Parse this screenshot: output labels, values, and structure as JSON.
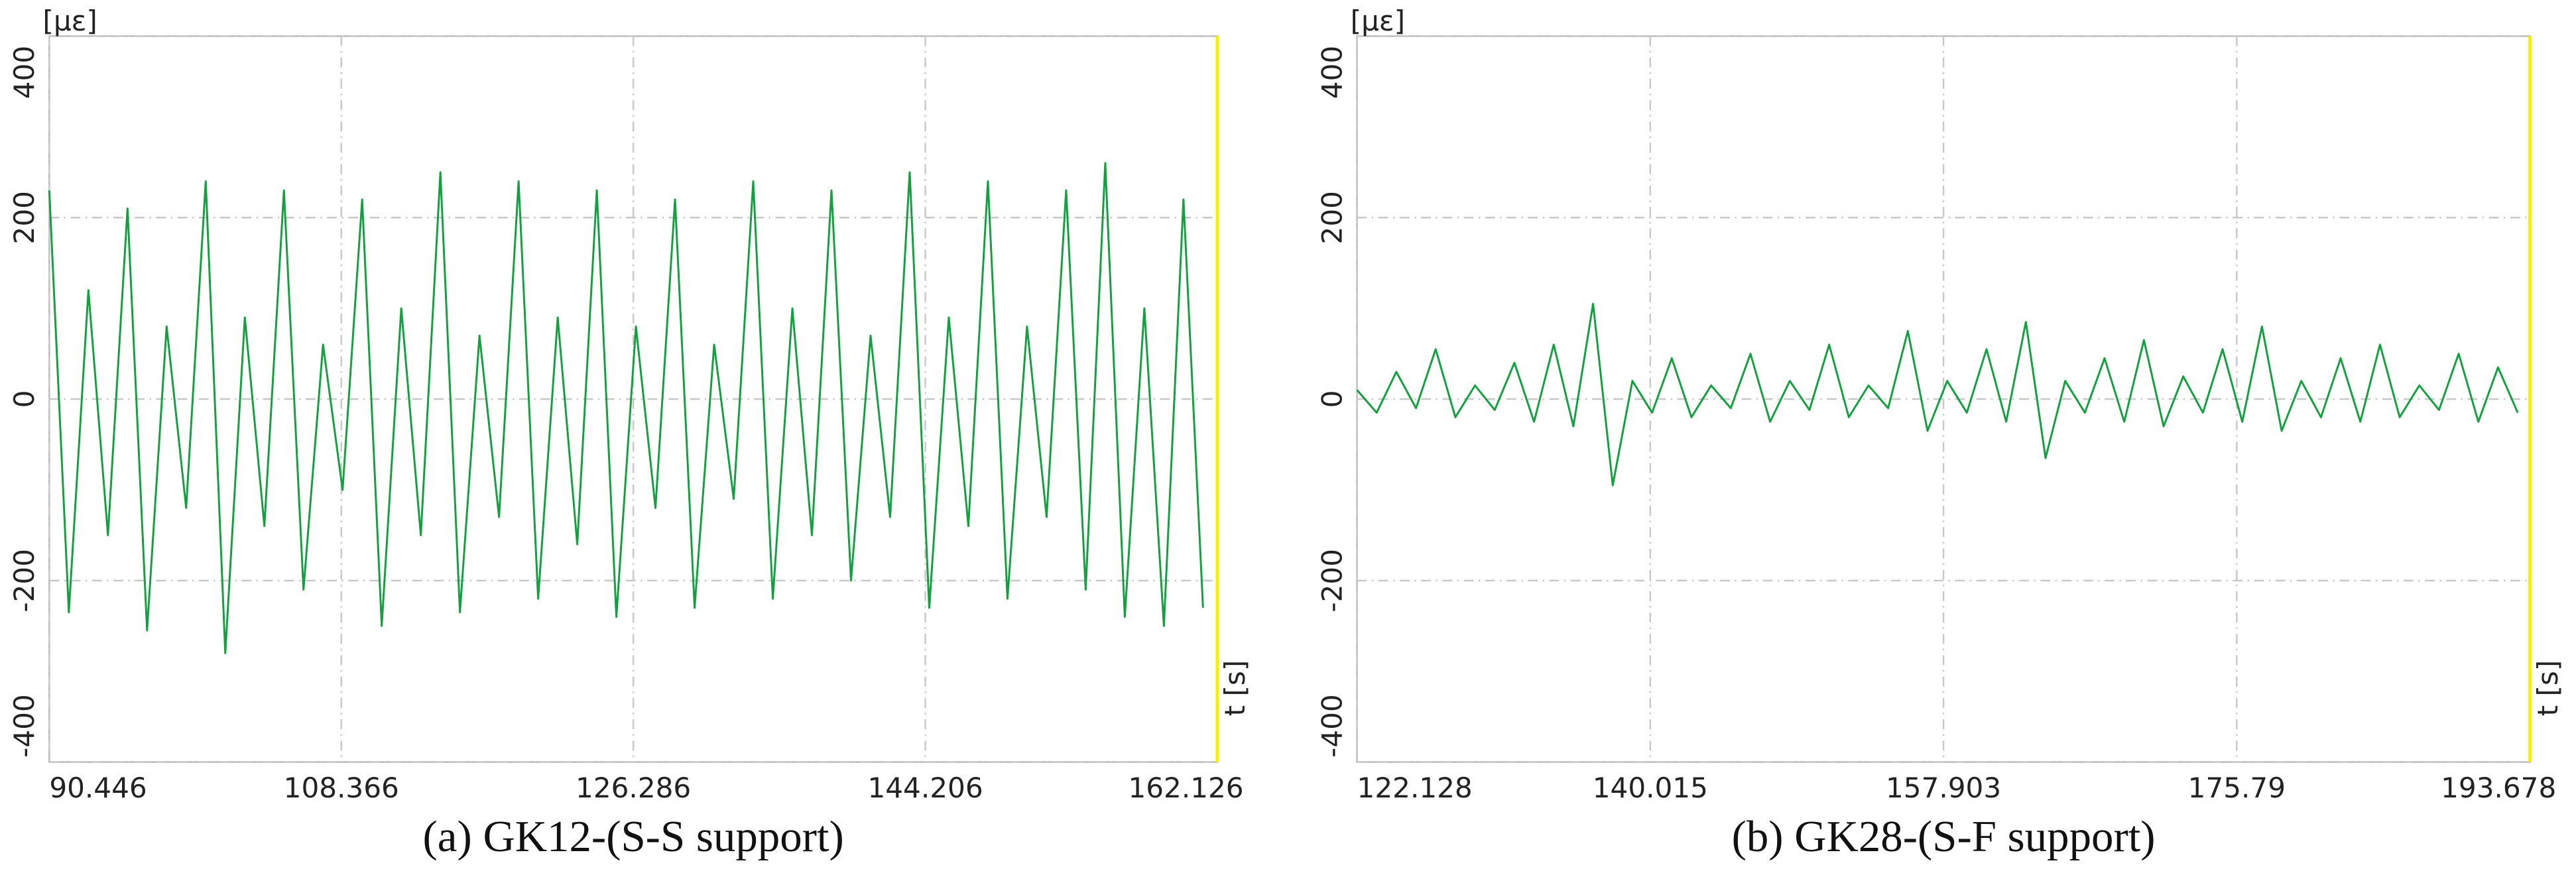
{
  "chart_data": [
    {
      "type": "line",
      "y_unit_label": "[με]",
      "x_unit_label": "t [s]",
      "caption": "(a) GK12-(S-S support)",
      "color": "#14a040",
      "grid": true,
      "xlim": [
        90.446,
        162.126
      ],
      "ylim": [
        -400,
        400
      ],
      "xticks": [
        90.446,
        108.366,
        126.286,
        144.206,
        162.126
      ],
      "yticks": [
        -400,
        -200,
        0,
        200,
        400
      ],
      "x": [
        90.446,
        91.646,
        92.846,
        94.046,
        95.246,
        96.446,
        97.646,
        98.846,
        100.046,
        101.246,
        102.446,
        103.646,
        104.846,
        106.046,
        107.246,
        108.446,
        109.646,
        110.846,
        112.046,
        113.246,
        114.446,
        115.646,
        116.846,
        118.046,
        119.246,
        120.446,
        121.646,
        122.846,
        124.046,
        125.246,
        126.446,
        127.646,
        128.846,
        130.046,
        131.246,
        132.446,
        133.646,
        134.846,
        136.046,
        137.246,
        138.446,
        139.646,
        140.846,
        142.046,
        143.246,
        144.446,
        145.646,
        146.846,
        148.046,
        149.246,
        150.446,
        151.646,
        152.846,
        154.046,
        155.246,
        156.446,
        157.646,
        158.846,
        160.046,
        161.246
      ],
      "values": [
        230,
        -235,
        120,
        -150,
        210,
        -255,
        80,
        -120,
        240,
        -280,
        90,
        -140,
        230,
        -210,
        60,
        -100,
        220,
        -250,
        100,
        -150,
        250,
        -235,
        70,
        -130,
        240,
        -220,
        90,
        -160,
        230,
        -240,
        80,
        -120,
        220,
        -230,
        60,
        -110,
        240,
        -220,
        100,
        -150,
        230,
        -200,
        70,
        -130,
        250,
        -230,
        90,
        -140,
        240,
        -220,
        80,
        -130,
        230,
        -210,
        260,
        -240,
        100,
        -250,
        220,
        -230
      ]
    },
    {
      "type": "line",
      "y_unit_label": "[με]",
      "x_unit_label": "t [s]",
      "caption": "(b) GK28-(S-F support)",
      "color": "#14a040",
      "grid": true,
      "xlim": [
        122.128,
        193.678
      ],
      "ylim": [
        -400,
        400
      ],
      "xticks": [
        122.128,
        140.015,
        157.903,
        175.79,
        193.678
      ],
      "yticks": [
        -400,
        -200,
        0,
        200,
        400
      ],
      "x": [
        122.128,
        123.328,
        124.528,
        125.728,
        126.928,
        128.128,
        129.328,
        130.528,
        131.728,
        132.928,
        134.128,
        135.328,
        136.528,
        137.728,
        138.928,
        140.128,
        141.328,
        142.528,
        143.728,
        144.928,
        146.128,
        147.328,
        148.528,
        149.728,
        150.928,
        152.128,
        153.328,
        154.528,
        155.728,
        156.928,
        158.128,
        159.328,
        160.528,
        161.728,
        162.928,
        164.128,
        165.328,
        166.528,
        167.728,
        168.928,
        170.128,
        171.328,
        172.528,
        173.728,
        174.928,
        176.128,
        177.328,
        178.528,
        179.728,
        180.928,
        182.128,
        183.328,
        184.528,
        185.728,
        186.928,
        188.128,
        189.328,
        190.528,
        191.728,
        192.928
      ],
      "values": [
        10,
        -15,
        30,
        -10,
        55,
        -20,
        15,
        -12,
        40,
        -25,
        60,
        -30,
        105,
        -95,
        20,
        -15,
        45,
        -20,
        15,
        -10,
        50,
        -25,
        20,
        -12,
        60,
        -20,
        15,
        -10,
        75,
        -35,
        20,
        -15,
        55,
        -25,
        85,
        -65,
        20,
        -15,
        45,
        -25,
        65,
        -30,
        25,
        -15,
        55,
        -25,
        80,
        -35,
        20,
        -20,
        45,
        -25,
        60,
        -20,
        15,
        -12,
        50,
        -25,
        35,
        -15
      ]
    }
  ]
}
